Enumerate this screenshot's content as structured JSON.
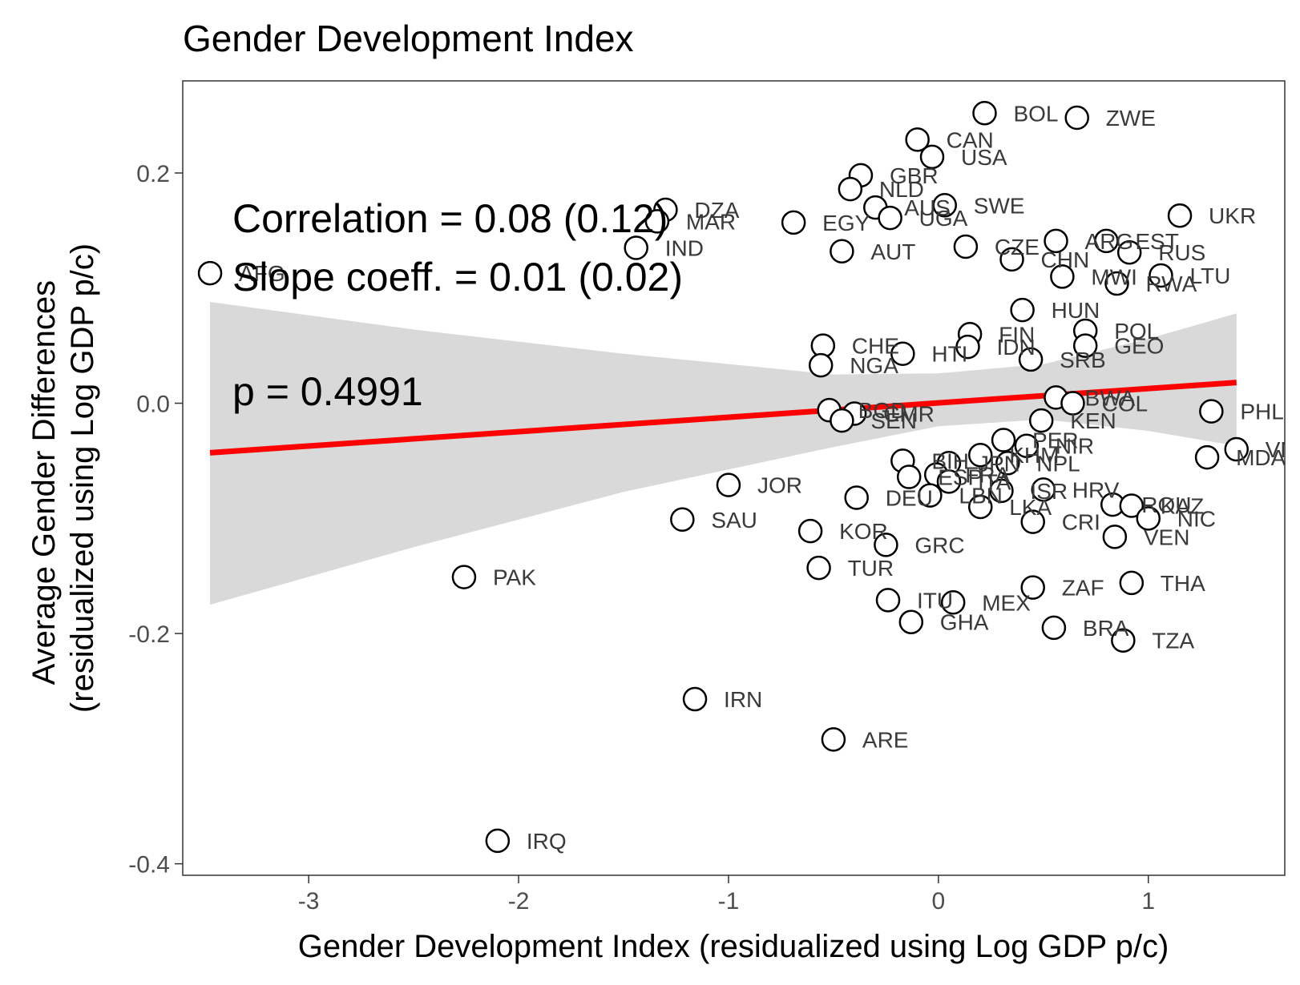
{
  "chart_data": {
    "type": "scatter",
    "title": "Gender Development Index",
    "xlabel": "Gender Development Index (residualized using Log GDP p/c)",
    "ylabel": [
      "Average Gender Differences",
      "(residualized using Log GDP p/c)"
    ],
    "xlim": [
      -3.6,
      1.65
    ],
    "ylim": [
      -0.41,
      0.28
    ],
    "x_ticks": [
      -3,
      -2,
      -1,
      0,
      1
    ],
    "y_ticks": [
      -0.4,
      -0.2,
      0.0,
      0.2
    ],
    "x_tick_labels": [
      "-3",
      "-2",
      "-1",
      "0",
      "1"
    ],
    "y_tick_labels": [
      "-0.4",
      "-0.2",
      "0.0",
      "0.2"
    ],
    "grid": false,
    "annotations": {
      "correlation": "Correlation = 0.08 (0.12)",
      "slope": "Slope coeff. = 0.01 (0.02)",
      "p_value": "p = 0.4991"
    },
    "fit_line": {
      "color": "#ff0000",
      "x": [
        -3.47,
        1.42
      ],
      "y": [
        -0.043,
        0.018
      ]
    },
    "confidence_band": {
      "color": "#d9d9d9",
      "x": [
        -3.47,
        -2.5,
        -1.5,
        -0.5,
        0.0,
        0.5,
        1.0,
        1.42
      ],
      "upper": [
        0.088,
        0.064,
        0.043,
        0.025,
        0.026,
        0.034,
        0.056,
        0.078
      ],
      "lower": [
        -0.175,
        -0.125,
        -0.077,
        -0.038,
        -0.02,
        -0.014,
        -0.024,
        -0.037
      ]
    },
    "points": [
      {
        "label": "BOL",
        "x": 0.22,
        "y": 0.252
      },
      {
        "label": "ZWE",
        "x": 0.66,
        "y": 0.248
      },
      {
        "label": "CAN",
        "x": -0.1,
        "y": 0.229
      },
      {
        "label": "USA",
        "x": -0.03,
        "y": 0.214
      },
      {
        "label": "GBR",
        "x": -0.37,
        "y": 0.198
      },
      {
        "label": "NLD",
        "x": -0.42,
        "y": 0.186
      },
      {
        "label": "AUS",
        "x": -0.3,
        "y": 0.17
      },
      {
        "label": "SWE",
        "x": 0.03,
        "y": 0.172
      },
      {
        "label": "UGA",
        "x": -0.23,
        "y": 0.161
      },
      {
        "label": "DZA",
        "x": -1.3,
        "y": 0.168
      },
      {
        "label": "MAR",
        "x": -1.34,
        "y": 0.158
      },
      {
        "label": "EGY",
        "x": -0.69,
        "y": 0.157
      },
      {
        "label": "UKR",
        "x": 1.15,
        "y": 0.163
      },
      {
        "label": "IND",
        "x": -1.44,
        "y": 0.135
      },
      {
        "label": "AUT",
        "x": -0.46,
        "y": 0.132
      },
      {
        "label": "CZE",
        "x": 0.13,
        "y": 0.136
      },
      {
        "label": "ARG",
        "x": 0.56,
        "y": 0.141
      },
      {
        "label": "EST",
        "x": 0.8,
        "y": 0.141
      },
      {
        "label": "RUS",
        "x": 0.91,
        "y": 0.131
      },
      {
        "label": "CHN",
        "x": 0.35,
        "y": 0.125
      },
      {
        "label": "MWI",
        "x": 0.59,
        "y": 0.11
      },
      {
        "label": "LTU",
        "x": 1.06,
        "y": 0.111
      },
      {
        "label": "RWA",
        "x": 0.85,
        "y": 0.104
      },
      {
        "label": "AFG",
        "x": -3.47,
        "y": 0.113
      },
      {
        "label": "HUN",
        "x": 0.4,
        "y": 0.081
      },
      {
        "label": "POL",
        "x": 0.7,
        "y": 0.063
      },
      {
        "label": "FIN",
        "x": 0.15,
        "y": 0.06
      },
      {
        "label": "GEO",
        "x": 0.7,
        "y": 0.05
      },
      {
        "label": "CHE",
        "x": -0.55,
        "y": 0.05
      },
      {
        "label": "IDN",
        "x": 0.14,
        "y": 0.049
      },
      {
        "label": "HTI",
        "x": -0.17,
        "y": 0.043
      },
      {
        "label": "SRB",
        "x": 0.44,
        "y": 0.038
      },
      {
        "label": "NGA",
        "x": -0.56,
        "y": 0.033
      },
      {
        "label": "BWA",
        "x": 0.56,
        "y": 0.005
      },
      {
        "label": "COL",
        "x": 0.64,
        "y": 0.0
      },
      {
        "label": "PHL",
        "x": 1.3,
        "y": -0.007
      },
      {
        "label": "BGD",
        "x": -0.52,
        "y": -0.006
      },
      {
        "label": "CMR",
        "x": -0.4,
        "y": -0.009
      },
      {
        "label": "SEN",
        "x": -0.46,
        "y": -0.015
      },
      {
        "label": "KEN",
        "x": 0.49,
        "y": -0.015
      },
      {
        "label": "PER",
        "x": 0.31,
        "y": -0.032
      },
      {
        "label": "NIR",
        "x": 0.42,
        "y": -0.037
      },
      {
        "label": "VNM",
        "x": 1.42,
        "y": -0.04
      },
      {
        "label": "MDA",
        "x": 1.28,
        "y": -0.047
      },
      {
        "label": "KHM",
        "x": 0.2,
        "y": -0.045
      },
      {
        "label": "BIH",
        "x": -0.17,
        "y": -0.05
      },
      {
        "label": "JPN",
        "x": 0.05,
        "y": -0.052
      },
      {
        "label": "NPL",
        "x": 0.33,
        "y": -0.052
      },
      {
        "label": "ESP",
        "x": -0.14,
        "y": -0.064
      },
      {
        "label": "FRA",
        "x": -0.01,
        "y": -0.062
      },
      {
        "label": "ITA",
        "x": 0.05,
        "y": -0.068
      },
      {
        "label": "JOR",
        "x": -1.0,
        "y": -0.071
      },
      {
        "label": "DEU",
        "x": -0.39,
        "y": -0.082
      },
      {
        "label": "LBN",
        "x": -0.04,
        "y": -0.08
      },
      {
        "label": "ISR",
        "x": 0.3,
        "y": -0.076
      },
      {
        "label": "HRV",
        "x": 0.5,
        "y": -0.075
      },
      {
        "label": "ROU",
        "x": 0.83,
        "y": -0.088
      },
      {
        "label": "LKA",
        "x": 0.2,
        "y": -0.09
      },
      {
        "label": "KAZ",
        "x": 0.92,
        "y": -0.089
      },
      {
        "label": "NIC",
        "x": 1.0,
        "y": -0.1
      },
      {
        "label": "CRI",
        "x": 0.45,
        "y": -0.103
      },
      {
        "label": "SAU",
        "x": -1.22,
        "y": -0.101
      },
      {
        "label": "KOR",
        "x": -0.61,
        "y": -0.111
      },
      {
        "label": "VEN",
        "x": 0.84,
        "y": -0.116
      },
      {
        "label": "GRC",
        "x": -0.25,
        "y": -0.123
      },
      {
        "label": "TUR",
        "x": -0.57,
        "y": -0.143
      },
      {
        "label": "PAK",
        "x": -2.26,
        "y": -0.151
      },
      {
        "label": "THA",
        "x": 0.92,
        "y": -0.156
      },
      {
        "label": "ZAF",
        "x": 0.45,
        "y": -0.16
      },
      {
        "label": "ITU",
        "x": -0.24,
        "y": -0.171
      },
      {
        "label": "MEX",
        "x": 0.07,
        "y": -0.173
      },
      {
        "label": "GHA",
        "x": -0.13,
        "y": -0.19
      },
      {
        "label": "BRA",
        "x": 0.55,
        "y": -0.195
      },
      {
        "label": "TZA",
        "x": 0.88,
        "y": -0.206
      },
      {
        "label": "IRN",
        "x": -1.16,
        "y": -0.257
      },
      {
        "label": "ARE",
        "x": -0.5,
        "y": -0.292
      },
      {
        "label": "IRQ",
        "x": -2.1,
        "y": -0.38
      }
    ]
  }
}
